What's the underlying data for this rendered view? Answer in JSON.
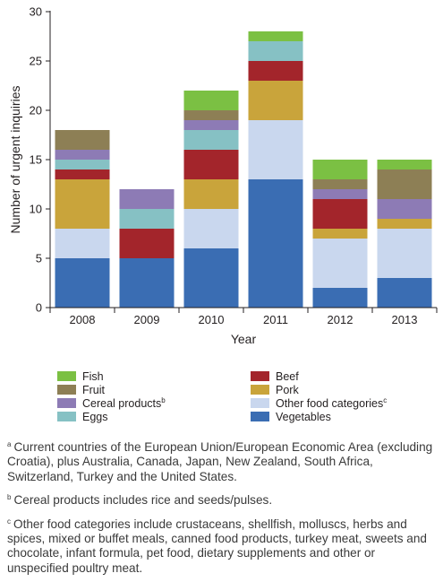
{
  "chart_data": {
    "type": "bar",
    "stacked": true,
    "categories": [
      "2008",
      "2009",
      "2010",
      "2011",
      "2012",
      "2013"
    ],
    "xlabel": "Year",
    "ylabel": "Number of urgent inquiries",
    "ylim": [
      0,
      30
    ],
    "yticks": [
      0,
      5,
      10,
      15,
      20,
      25,
      30
    ],
    "grid": false,
    "legend_position": "bottom",
    "series": [
      {
        "name": "Vegetables",
        "color": "#3a6db3",
        "values": [
          5,
          5,
          6,
          13,
          2,
          3
        ]
      },
      {
        "name": "Other food categories",
        "sup": "c",
        "color": "#c9d7ee",
        "values": [
          3,
          0,
          4,
          6,
          5,
          5
        ]
      },
      {
        "name": "Pork",
        "color": "#c9a43b",
        "values": [
          5,
          0,
          3,
          4,
          1,
          1
        ]
      },
      {
        "name": "Beef",
        "color": "#a3252b",
        "values": [
          1,
          3,
          3,
          2,
          3,
          0
        ]
      },
      {
        "name": "Eggs",
        "color": "#86c1c4",
        "values": [
          1,
          2,
          2,
          2,
          0,
          0
        ]
      },
      {
        "name": "Cereal products",
        "sup": "b",
        "color": "#8d7bb5",
        "values": [
          1,
          2,
          1,
          0,
          1,
          2
        ]
      },
      {
        "name": "Fruit",
        "color": "#8d7f55",
        "values": [
          2,
          0,
          1,
          0,
          1,
          3
        ]
      },
      {
        "name": "Fish",
        "color": "#7bc043",
        "values": [
          0,
          0,
          2,
          1,
          2,
          1
        ]
      }
    ],
    "legend_order": [
      [
        "Fish",
        "Beef"
      ],
      [
        "Fruit",
        "Pork"
      ],
      [
        "Cereal products",
        "Other food categories"
      ],
      [
        "Eggs",
        "Vegetables"
      ]
    ]
  },
  "footnotes": [
    {
      "mark": "a",
      "text": "Current countries of the European Union/European Economic Area (excluding Croatia), plus Australia, Canada, Japan, New Zealand, South Africa, Switzerland, Turkey and the United States."
    },
    {
      "mark": "b",
      "text": "Cereal products includes rice and seeds/pulses."
    },
    {
      "mark": "c",
      "text": "Other food categories include crustaceans, shellfish, molluscs, herbs and spices, mixed or buffet meals, canned food products, turkey meat, sweets and chocolate, infant formula, pet food, dietary supplements and other or unspecified poultry meat."
    }
  ]
}
